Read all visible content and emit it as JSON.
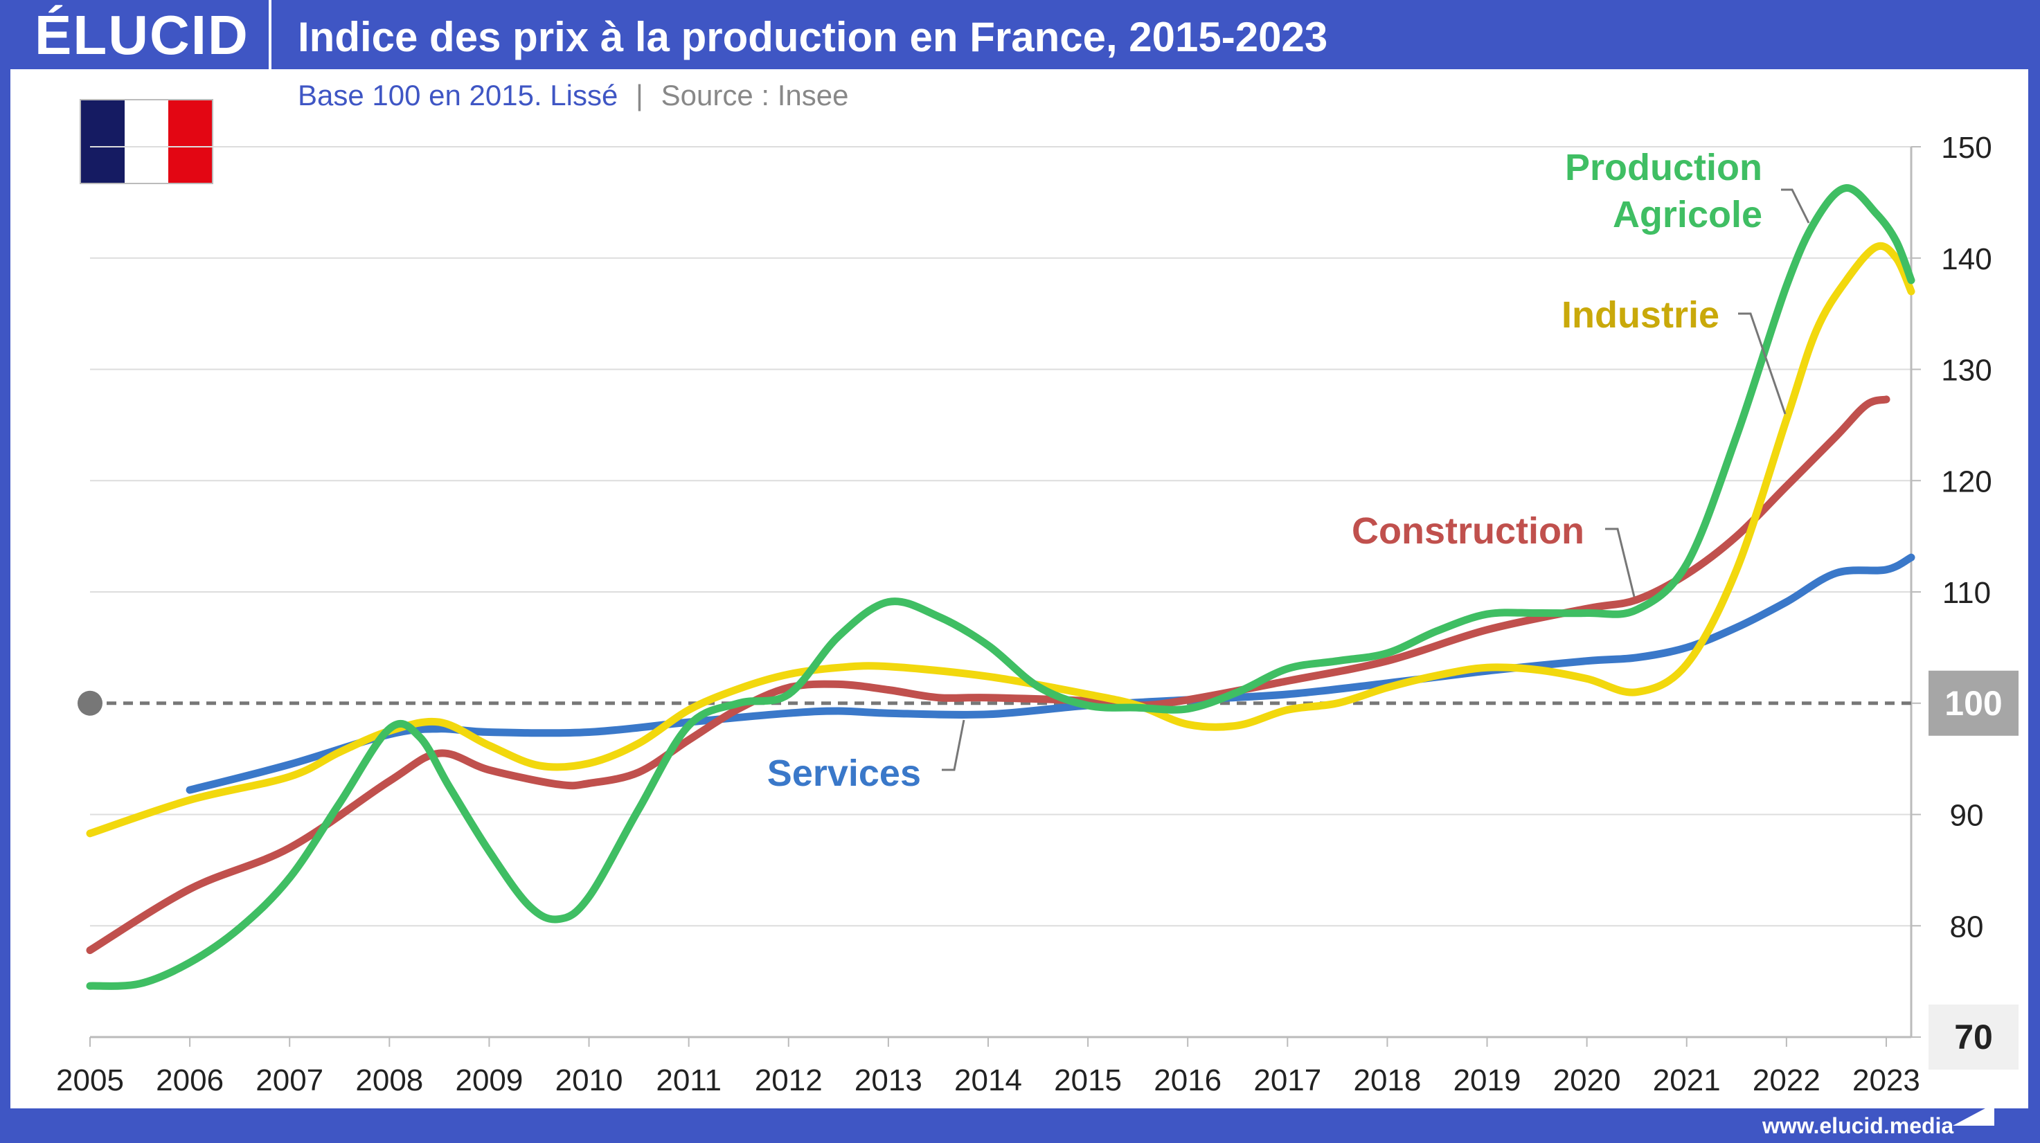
{
  "header": {
    "logo": "ÉLUCID",
    "title": "Indice des prix à la production en France, 2015-2023",
    "subtitle_base": "Base 100 en 2015. Lissé",
    "subtitle_sep": "|",
    "subtitle_source": "Source : Insee"
  },
  "footer": {
    "url": "www.elucid.media"
  },
  "colors": {
    "background": "#3f56c4",
    "services": "#3a78c9",
    "construction": "#c0504d",
    "industrie": "#f2d80d",
    "agricole": "#3fbe63",
    "industrie_label": "#c9a90a",
    "baseline_box": "#a6a6a6",
    "flag_blue": "#151b62",
    "flag_white": "#ffffff",
    "flag_red": "#e30613"
  },
  "icons": {
    "flag": "france-flag-icon",
    "logo_mark": "elucid-logo-icon"
  },
  "chart_data": {
    "type": "line",
    "title": "Indice des prix à la production en France, 2015-2023",
    "subtitle": "Base 100 en 2015. Lissé | Source : Insee",
    "xlabel": "",
    "ylabel": "",
    "xlim": [
      2005,
      2023.25
    ],
    "ylim": [
      70,
      150
    ],
    "x_ticks": [
      "2005",
      "2006",
      "2007",
      "2008",
      "2009",
      "2010",
      "2011",
      "2012",
      "2013",
      "2014",
      "2015",
      "2016",
      "2017",
      "2018",
      "2019",
      "2020",
      "2021",
      "2022",
      "2023"
    ],
    "y_ticks": [
      80,
      90,
      110,
      120,
      130,
      140,
      150
    ],
    "y_tick_labels": [
      "80",
      "90",
      "110",
      "120",
      "130",
      "140",
      "150"
    ],
    "y_box_labels": [
      {
        "value": 100,
        "label": "100",
        "style": "highlight"
      },
      {
        "value": 70,
        "label": "70",
        "style": "plain"
      }
    ],
    "baseline": 100,
    "grid": true,
    "legend": "inline labels",
    "series": [
      {
        "name": "Services",
        "color": "#3a78c9",
        "label_style": "inline",
        "points": [
          [
            2006,
            92.2
          ],
          [
            2007,
            94.5
          ],
          [
            2008,
            97.2
          ],
          [
            2008.5,
            97.7
          ],
          [
            2009,
            97.4
          ],
          [
            2010,
            97.4
          ],
          [
            2011,
            98.3
          ],
          [
            2012,
            99.1
          ],
          [
            2012.5,
            99.3
          ],
          [
            2013,
            99.1
          ],
          [
            2014,
            99.0
          ],
          [
            2015,
            99.8
          ],
          [
            2016,
            100.3
          ],
          [
            2017,
            100.8
          ],
          [
            2018,
            101.8
          ],
          [
            2019,
            102.9
          ],
          [
            2020,
            103.8
          ],
          [
            2020.5,
            104.1
          ],
          [
            2021,
            105.0
          ],
          [
            2021.5,
            106.8
          ],
          [
            2022,
            109.1
          ],
          [
            2022.5,
            111.7
          ],
          [
            2023,
            112.0
          ],
          [
            2023.25,
            113.1
          ]
        ]
      },
      {
        "name": "Construction",
        "color": "#c0504d",
        "label_style": "inline",
        "points": [
          [
            2005,
            77.8
          ],
          [
            2006,
            83.3
          ],
          [
            2007,
            87.0
          ],
          [
            2008,
            93.0
          ],
          [
            2008.5,
            95.5
          ],
          [
            2009,
            94.0
          ],
          [
            2009.7,
            92.7
          ],
          [
            2010,
            92.8
          ],
          [
            2010.5,
            93.8
          ],
          [
            2011,
            96.7
          ],
          [
            2011.5,
            99.5
          ],
          [
            2012,
            101.4
          ],
          [
            2012.5,
            101.7
          ],
          [
            2013,
            101.2
          ],
          [
            2013.5,
            100.5
          ],
          [
            2014,
            100.5
          ],
          [
            2015,
            100.2
          ],
          [
            2015.5,
            99.8
          ],
          [
            2016,
            100.3
          ],
          [
            2017,
            102.0
          ],
          [
            2018,
            103.8
          ],
          [
            2019,
            106.6
          ],
          [
            2020,
            108.5
          ],
          [
            2020.5,
            109.3
          ],
          [
            2021,
            111.6
          ],
          [
            2021.5,
            115.0
          ],
          [
            2022,
            119.5
          ],
          [
            2022.5,
            124.0
          ],
          [
            2022.8,
            126.8
          ],
          [
            2023,
            127.3
          ]
        ]
      },
      {
        "name": "Industrie",
        "color": "#f2d80d",
        "label_style": "inline",
        "points": [
          [
            2005,
            88.3
          ],
          [
            2006,
            91.3
          ],
          [
            2007,
            93.4
          ],
          [
            2007.5,
            95.6
          ],
          [
            2008,
            97.5
          ],
          [
            2008.5,
            98.3
          ],
          [
            2009,
            96.2
          ],
          [
            2009.5,
            94.4
          ],
          [
            2010,
            94.6
          ],
          [
            2010.5,
            96.4
          ],
          [
            2011,
            99.4
          ],
          [
            2011.5,
            101.3
          ],
          [
            2012,
            102.6
          ],
          [
            2012.5,
            103.2
          ],
          [
            2013,
            103.3
          ],
          [
            2014,
            102.4
          ],
          [
            2015,
            100.8
          ],
          [
            2015.5,
            99.8
          ],
          [
            2016,
            98.1
          ],
          [
            2016.5,
            98.0
          ],
          [
            2017,
            99.4
          ],
          [
            2017.5,
            100.0
          ],
          [
            2018,
            101.4
          ],
          [
            2018.5,
            102.5
          ],
          [
            2019,
            103.2
          ],
          [
            2019.5,
            103.0
          ],
          [
            2020,
            102.2
          ],
          [
            2020.5,
            101.0
          ],
          [
            2021,
            103.5
          ],
          [
            2021.5,
            112.0
          ],
          [
            2022,
            125.5
          ],
          [
            2022.3,
            133.5
          ],
          [
            2022.6,
            138.0
          ],
          [
            2022.9,
            141.0
          ],
          [
            2023.1,
            140.0
          ],
          [
            2023.25,
            137.0
          ]
        ]
      },
      {
        "name": "Production Agricole",
        "color": "#3fbe63",
        "label_style": "inline",
        "points": [
          [
            2005,
            74.6
          ],
          [
            2005.5,
            74.8
          ],
          [
            2006,
            76.7
          ],
          [
            2006.5,
            79.8
          ],
          [
            2007,
            84.3
          ],
          [
            2007.5,
            91.0
          ],
          [
            2008,
            97.7
          ],
          [
            2008.3,
            97.0
          ],
          [
            2008.6,
            92.5
          ],
          [
            2009,
            86.7
          ],
          [
            2009.4,
            81.8
          ],
          [
            2009.7,
            80.6
          ],
          [
            2010,
            82.6
          ],
          [
            2010.5,
            90.5
          ],
          [
            2011,
            98.0
          ],
          [
            2011.5,
            100.0
          ],
          [
            2012,
            100.8
          ],
          [
            2012.5,
            106.0
          ],
          [
            2013,
            109.1
          ],
          [
            2013.5,
            107.8
          ],
          [
            2014,
            105.2
          ],
          [
            2014.5,
            101.5
          ],
          [
            2015,
            99.8
          ],
          [
            2015.5,
            99.6
          ],
          [
            2016,
            99.5
          ],
          [
            2016.5,
            101.0
          ],
          [
            2017,
            103.1
          ],
          [
            2017.5,
            103.8
          ],
          [
            2018,
            104.5
          ],
          [
            2018.5,
            106.5
          ],
          [
            2019,
            108.0
          ],
          [
            2019.5,
            108.1
          ],
          [
            2020,
            108.1
          ],
          [
            2020.5,
            108.4
          ],
          [
            2021,
            112.5
          ],
          [
            2021.5,
            124.0
          ],
          [
            2022,
            137.5
          ],
          [
            2022.3,
            143.5
          ],
          [
            2022.6,
            146.3
          ],
          [
            2022.9,
            144.0
          ],
          [
            2023.1,
            141.5
          ],
          [
            2023.25,
            138.0
          ]
        ]
      }
    ]
  }
}
